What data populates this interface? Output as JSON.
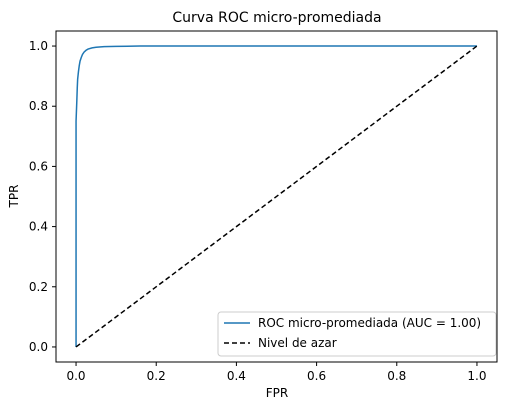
{
  "chart_data": {
    "type": "line",
    "title": "Curva ROC micro-promediada",
    "xlabel": "FPR",
    "ylabel": "TPR",
    "xlim": [
      -0.05,
      1.05
    ],
    "ylim": [
      -0.05,
      1.05
    ],
    "x_ticks": [
      0.0,
      0.2,
      0.4,
      0.6,
      0.8,
      1.0
    ],
    "y_ticks": [
      0.0,
      0.2,
      0.4,
      0.6,
      0.8,
      1.0
    ],
    "x_tick_labels": [
      "0.0",
      "0.2",
      "0.4",
      "0.6",
      "0.8",
      "1.0"
    ],
    "y_tick_labels": [
      "0.0",
      "0.2",
      "0.4",
      "0.6",
      "0.8",
      "1.0"
    ],
    "grid": false,
    "legend_position": "lower-right",
    "series": [
      {
        "name": "ROC micro-promediada (AUC = 1.00)",
        "color": "#1f77b4",
        "style": "solid",
        "x": [
          0.0,
          0.0,
          0.002,
          0.003,
          0.004,
          0.006,
          0.008,
          0.01,
          0.013,
          0.016,
          0.02,
          0.025,
          0.03,
          0.04,
          0.05,
          0.07,
          0.1,
          0.16,
          1.0
        ],
        "y": [
          0.0,
          0.75,
          0.82,
          0.86,
          0.89,
          0.915,
          0.935,
          0.95,
          0.962,
          0.972,
          0.98,
          0.986,
          0.99,
          0.994,
          0.996,
          0.998,
          0.999,
          1.0,
          1.0
        ]
      },
      {
        "name": "Nivel de azar",
        "color": "#000000",
        "style": "dashed",
        "x": [
          0.0,
          1.0
        ],
        "y": [
          0.0,
          1.0
        ]
      }
    ]
  }
}
